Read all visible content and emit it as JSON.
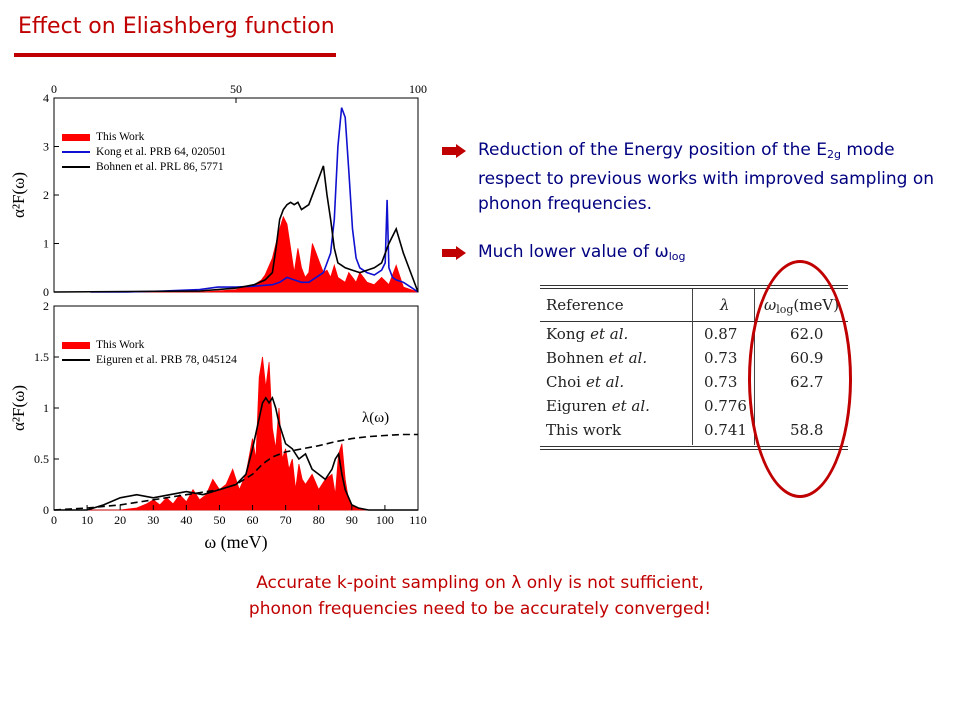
{
  "slide": {
    "title": "Effect on Eliashberg function",
    "accent_color": "#c00000",
    "text_color": "#000080"
  },
  "bullets": [
    {
      "icon": "arrow-right-icon",
      "text_pre": "Reduction of the Energy position of the E",
      "text_sub": "2g",
      "text_post": " mode respect to previous works with improved sampling on phonon frequencies."
    },
    {
      "icon": "arrow-right-icon",
      "text_pre": "Much lower value of ω",
      "text_sub": "log",
      "text_post": ""
    }
  ],
  "table": {
    "headers": {
      "reference": "Reference",
      "lambda": "λ",
      "omega_sym": "ω",
      "omega_sub": "log",
      "omega_unit": "(meV)"
    },
    "rows": [
      {
        "ref": "Kong",
        "etal": "et al.",
        "lambda": "0.87",
        "omega": "62.0"
      },
      {
        "ref": "Bohnen",
        "etal": "et al.",
        "lambda": "0.73",
        "omega": "60.9"
      },
      {
        "ref": "Choi",
        "etal": "et al.",
        "lambda": "0.73",
        "omega": "62.7"
      },
      {
        "ref": "Eiguren",
        "etal": "et al.",
        "lambda": "0.776",
        "omega": ""
      },
      {
        "ref": "This work",
        "etal": "",
        "lambda": "0.741",
        "omega": "58.8"
      }
    ]
  },
  "conclusion": {
    "line1": "Accurate k-point sampling on λ only is not sufficient,",
    "line2": "phonon frequencies need to be accurately converged!"
  },
  "chart_data": [
    {
      "type": "area",
      "ylabel": "α²F(ω)",
      "top_axis_ticks": [
        "0",
        "50",
        "100"
      ],
      "xlim": [
        0,
        100
      ],
      "ylim": [
        0,
        4
      ],
      "y_ticks": [
        "0",
        "1",
        "2",
        "3",
        "4"
      ],
      "legend_position": "top-left",
      "series": [
        {
          "name": "This Work",
          "style": "filled",
          "color": "#ff0000",
          "x": [
            0,
            40,
            45,
            50,
            52,
            55,
            57,
            58,
            60,
            61,
            62,
            63,
            64,
            65,
            66,
            67,
            68,
            69,
            70,
            71,
            72,
            73,
            74,
            75,
            76,
            77,
            78,
            80,
            81,
            82,
            83,
            84,
            86,
            88,
            90,
            92,
            94,
            96,
            98,
            100
          ],
          "values": [
            0,
            0,
            0.02,
            0.05,
            0.1,
            0.15,
            0.25,
            0.35,
            0.7,
            1.0,
            1.3,
            1.55,
            1.4,
            0.9,
            0.4,
            0.9,
            0.5,
            0.3,
            0.4,
            1.0,
            0.8,
            0.6,
            0.4,
            0.45,
            0.3,
            0.55,
            0.3,
            0.2,
            0.4,
            0.3,
            0.2,
            0.4,
            0.2,
            0.15,
            0.3,
            0.15,
            0.55,
            0.1,
            0.05,
            0
          ]
        },
        {
          "name": "Kong et al. PRB 64, 020501",
          "style": "line",
          "color": "#1010d0",
          "x": [
            10,
            20,
            30,
            40,
            45,
            50,
            55,
            60,
            62,
            64,
            66,
            68,
            70,
            72,
            74,
            76,
            77,
            78,
            79,
            80,
            81,
            82,
            83,
            84,
            86,
            88,
            90,
            91,
            91.5,
            92,
            93,
            94,
            96,
            98,
            100
          ],
          "values": [
            0,
            0,
            0.02,
            0.05,
            0.1,
            0.1,
            0.12,
            0.15,
            0.2,
            0.3,
            0.25,
            0.2,
            0.2,
            0.3,
            0.4,
            0.8,
            1.5,
            3.0,
            3.8,
            3.6,
            2.5,
            1.3,
            0.7,
            0.5,
            0.4,
            0.35,
            0.45,
            0.6,
            1.9,
            0.5,
            0.3,
            0.25,
            0.2,
            0.1,
            0
          ]
        },
        {
          "name": "Bohnen et al. PRL 86, 5771",
          "style": "line",
          "color": "#000000",
          "x": [
            0,
            40,
            45,
            50,
            55,
            58,
            60,
            61,
            62,
            63,
            64,
            65,
            66,
            67,
            68,
            70,
            72,
            74,
            75,
            76,
            77,
            78,
            79,
            80,
            82,
            84,
            86,
            88,
            90,
            92,
            94,
            96,
            98,
            100
          ],
          "values": [
            0,
            0.02,
            0.05,
            0.08,
            0.15,
            0.25,
            0.4,
            0.9,
            1.5,
            1.7,
            1.8,
            1.85,
            1.8,
            1.85,
            1.7,
            1.8,
            2.2,
            2.6,
            2.0,
            1.5,
            0.9,
            0.6,
            0.55,
            0.5,
            0.45,
            0.4,
            0.45,
            0.5,
            0.6,
            1.0,
            1.3,
            0.8,
            0.4,
            0
          ]
        }
      ]
    },
    {
      "type": "area",
      "xlabel": "ω (meV)",
      "ylabel": "α²F(ω)",
      "xlim": [
        0,
        110
      ],
      "ylim": [
        0,
        2
      ],
      "x_ticks": [
        "0",
        "10",
        "20",
        "30",
        "40",
        "50",
        "60",
        "70",
        "80",
        "90",
        "100",
        "110"
      ],
      "y_ticks": [
        "0",
        "0.5",
        "1",
        "1.5",
        "2"
      ],
      "legend_position": "top-left",
      "annotation": "λ(ω)",
      "series": [
        {
          "name": "This Work",
          "style": "filled",
          "color": "#ff0000",
          "x": [
            0,
            20,
            25,
            28,
            30,
            32,
            34,
            36,
            38,
            40,
            42,
            44,
            46,
            48,
            50,
            52,
            54,
            56,
            58,
            60,
            61,
            62,
            63,
            64,
            65,
            66,
            67,
            68,
            69,
            70,
            71,
            72,
            73,
            74,
            75,
            76,
            78,
            80,
            82,
            84,
            85,
            86,
            87,
            88,
            89,
            90,
            92,
            95,
            100,
            110
          ],
          "values": [
            0,
            0,
            0.02,
            0.06,
            0.1,
            0.05,
            0.12,
            0.06,
            0.15,
            0.08,
            0.2,
            0.1,
            0.15,
            0.3,
            0.2,
            0.25,
            0.4,
            0.2,
            0.35,
            0.7,
            0.5,
            1.3,
            1.5,
            1.2,
            1.45,
            0.8,
            0.6,
            1.0,
            0.5,
            0.6,
            0.4,
            0.5,
            0.2,
            0.45,
            0.3,
            0.25,
            0.35,
            0.2,
            0.3,
            0.35,
            0.15,
            0.55,
            0.65,
            0.3,
            0.1,
            0.05,
            0.02,
            0,
            0,
            0
          ]
        },
        {
          "name": "Eiguren et al. PRB 78, 045124",
          "style": "line",
          "color": "#000000",
          "x": [
            0,
            10,
            15,
            20,
            25,
            30,
            35,
            40,
            45,
            50,
            55,
            58,
            60,
            62,
            63,
            64,
            65,
            66,
            67,
            68,
            70,
            72,
            74,
            76,
            78,
            80,
            82,
            84,
            85,
            86,
            87,
            88,
            90,
            92,
            95,
            100,
            110
          ],
          "values": [
            0,
            0,
            0.05,
            0.12,
            0.15,
            0.12,
            0.15,
            0.18,
            0.15,
            0.2,
            0.25,
            0.35,
            0.6,
            0.9,
            1.05,
            1.1,
            1.05,
            1.1,
            1.0,
            0.85,
            0.65,
            0.6,
            0.5,
            0.55,
            0.4,
            0.35,
            0.3,
            0.4,
            0.5,
            0.55,
            0.35,
            0.2,
            0.05,
            0.02,
            0,
            0,
            0
          ]
        },
        {
          "name": "",
          "style": "dashed",
          "color": "#000000",
          "x": [
            0,
            10,
            20,
            30,
            40,
            50,
            55,
            60,
            63,
            66,
            70,
            75,
            80,
            85,
            90,
            95,
            100,
            105,
            110
          ],
          "values": [
            0,
            0.02,
            0.05,
            0.1,
            0.15,
            0.2,
            0.25,
            0.35,
            0.45,
            0.52,
            0.57,
            0.6,
            0.63,
            0.67,
            0.7,
            0.72,
            0.73,
            0.74,
            0.74
          ]
        }
      ]
    }
  ]
}
